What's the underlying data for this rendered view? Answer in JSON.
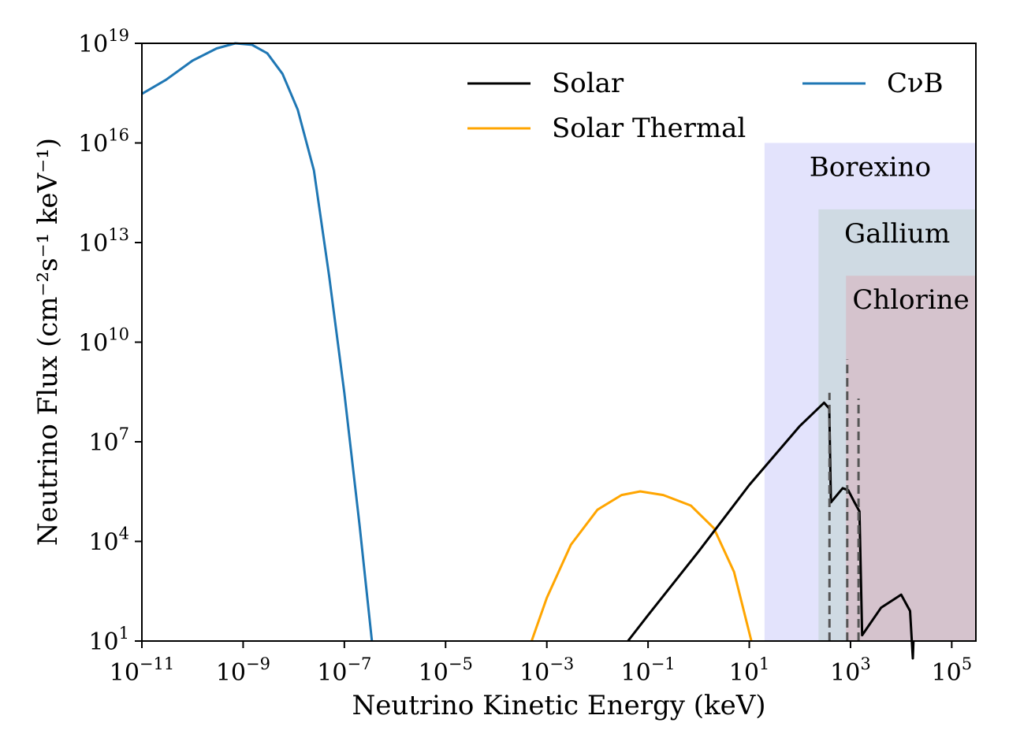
{
  "chart_data": {
    "type": "line",
    "xscale": "log",
    "yscale": "log",
    "xlabel": "Neutrino Kinetic Energy (keV)",
    "ylabel": "Neutrino Flux (cm⁻²s⁻¹ keV⁻¹)",
    "xlim": [
      1e-11,
      300000
    ],
    "ylim": [
      10,
      1e+19
    ],
    "x_ticks": [
      {
        "value": 1e-11,
        "base": "10",
        "exp": "−11"
      },
      {
        "value": 1e-09,
        "base": "10",
        "exp": "−9"
      },
      {
        "value": 1e-07,
        "base": "10",
        "exp": "−7"
      },
      {
        "value": 1e-05,
        "base": "10",
        "exp": "−5"
      },
      {
        "value": 0.001,
        "base": "10",
        "exp": "−3"
      },
      {
        "value": 0.1,
        "base": "10",
        "exp": "−1"
      },
      {
        "value": 10,
        "base": "10",
        "exp": "1"
      },
      {
        "value": 1000,
        "base": "10",
        "exp": "3"
      },
      {
        "value": 100000,
        "base": "10",
        "exp": "5"
      }
    ],
    "y_ticks": [
      {
        "value": 10,
        "base": "10",
        "exp": "1"
      },
      {
        "value": 10000,
        "base": "10",
        "exp": "4"
      },
      {
        "value": 10000000.0,
        "base": "10",
        "exp": "7"
      },
      {
        "value": 10000000000.0,
        "base": "10",
        "exp": "10"
      },
      {
        "value": 10000000000000.0,
        "base": "10",
        "exp": "13"
      },
      {
        "value": 1e+16,
        "base": "10",
        "exp": "16"
      },
      {
        "value": 1e+19,
        "base": "10",
        "exp": "19"
      }
    ],
    "regions": [
      {
        "name": "Borexino",
        "x_start": 20,
        "y_top": 1e+16,
        "color": "#e3e3fc"
      },
      {
        "name": "Gallium",
        "x_start": 233,
        "y_top": 100000000000000.0,
        "color": "#cfdae3"
      },
      {
        "name": "Chlorine",
        "x_start": 814,
        "y_top": 1000000000000.0,
        "color": "#d5c3cd"
      }
    ],
    "legend": {
      "placement": "top-right",
      "entries": [
        {
          "label": "Solar",
          "series": "solar"
        },
        {
          "label": "Solar Thermal",
          "series": "solar_thermal"
        },
        {
          "label": "CνB",
          "series": "cnub"
        }
      ]
    },
    "series": [
      {
        "id": "cnub",
        "name": "CνB",
        "color": "#1f77b4",
        "points": [
          [
            1e-11,
            3e+17
          ],
          [
            3e-11,
            8e+17
          ],
          [
            1e-10,
            3e+18
          ],
          [
            3e-10,
            7e+18
          ],
          [
            7e-10,
            1e+19
          ],
          [
            1.5e-09,
            9e+18
          ],
          [
            3e-09,
            5e+18
          ],
          [
            6e-09,
            1.2e+18
          ],
          [
            1.2e-08,
            1e+17
          ],
          [
            2.5e-08,
            1500000000000000.0
          ],
          [
            5e-08,
            1000000000000.0
          ],
          [
            1e-07,
            300000000.0
          ],
          [
            2e-07,
            30000.0
          ],
          [
            3.5e-07,
            10
          ]
        ]
      },
      {
        "id": "solar_thermal",
        "name": "Solar Thermal",
        "color": "#ffa500",
        "points": [
          [
            0.0005,
            10
          ],
          [
            0.001,
            200
          ],
          [
            0.003,
            8000
          ],
          [
            0.01,
            90000
          ],
          [
            0.03,
            250000
          ],
          [
            0.07,
            320000
          ],
          [
            0.2,
            250000
          ],
          [
            0.7,
            120000
          ],
          [
            2,
            25000
          ],
          [
            5,
            1200
          ],
          [
            11,
            10
          ]
        ]
      },
      {
        "id": "solar",
        "name": "Solar",
        "color": "#000000",
        "points": [
          [
            0.04,
            10
          ],
          [
            0.1,
            60
          ],
          [
            1,
            5000
          ],
          [
            10,
            500000
          ],
          [
            100,
            30000000.0
          ],
          [
            300,
            150000000.0
          ],
          [
            380,
            100000000.0
          ],
          [
            410,
            150000.0
          ],
          [
            700,
            400000.0
          ],
          [
            900,
            350000.0
          ],
          [
            1200,
            150000.0
          ],
          [
            1500,
            80000.0
          ],
          [
            1700,
            15
          ],
          [
            4000,
            100
          ],
          [
            10000,
            250
          ],
          [
            15000,
            80
          ],
          [
            17000,
            3
          ],
          [
            17500,
            10
          ]
        ]
      }
    ],
    "lines": [
      {
        "x": 384,
        "y_top": 300000000.0,
        "color": "#555555",
        "dash": true
      },
      {
        "x": 862,
        "y_top": 3000000000.0,
        "color": "#555555",
        "dash": true
      },
      {
        "x": 1440,
        "y_top": 200000000.0,
        "color": "#555555",
        "dash": true
      }
    ]
  }
}
